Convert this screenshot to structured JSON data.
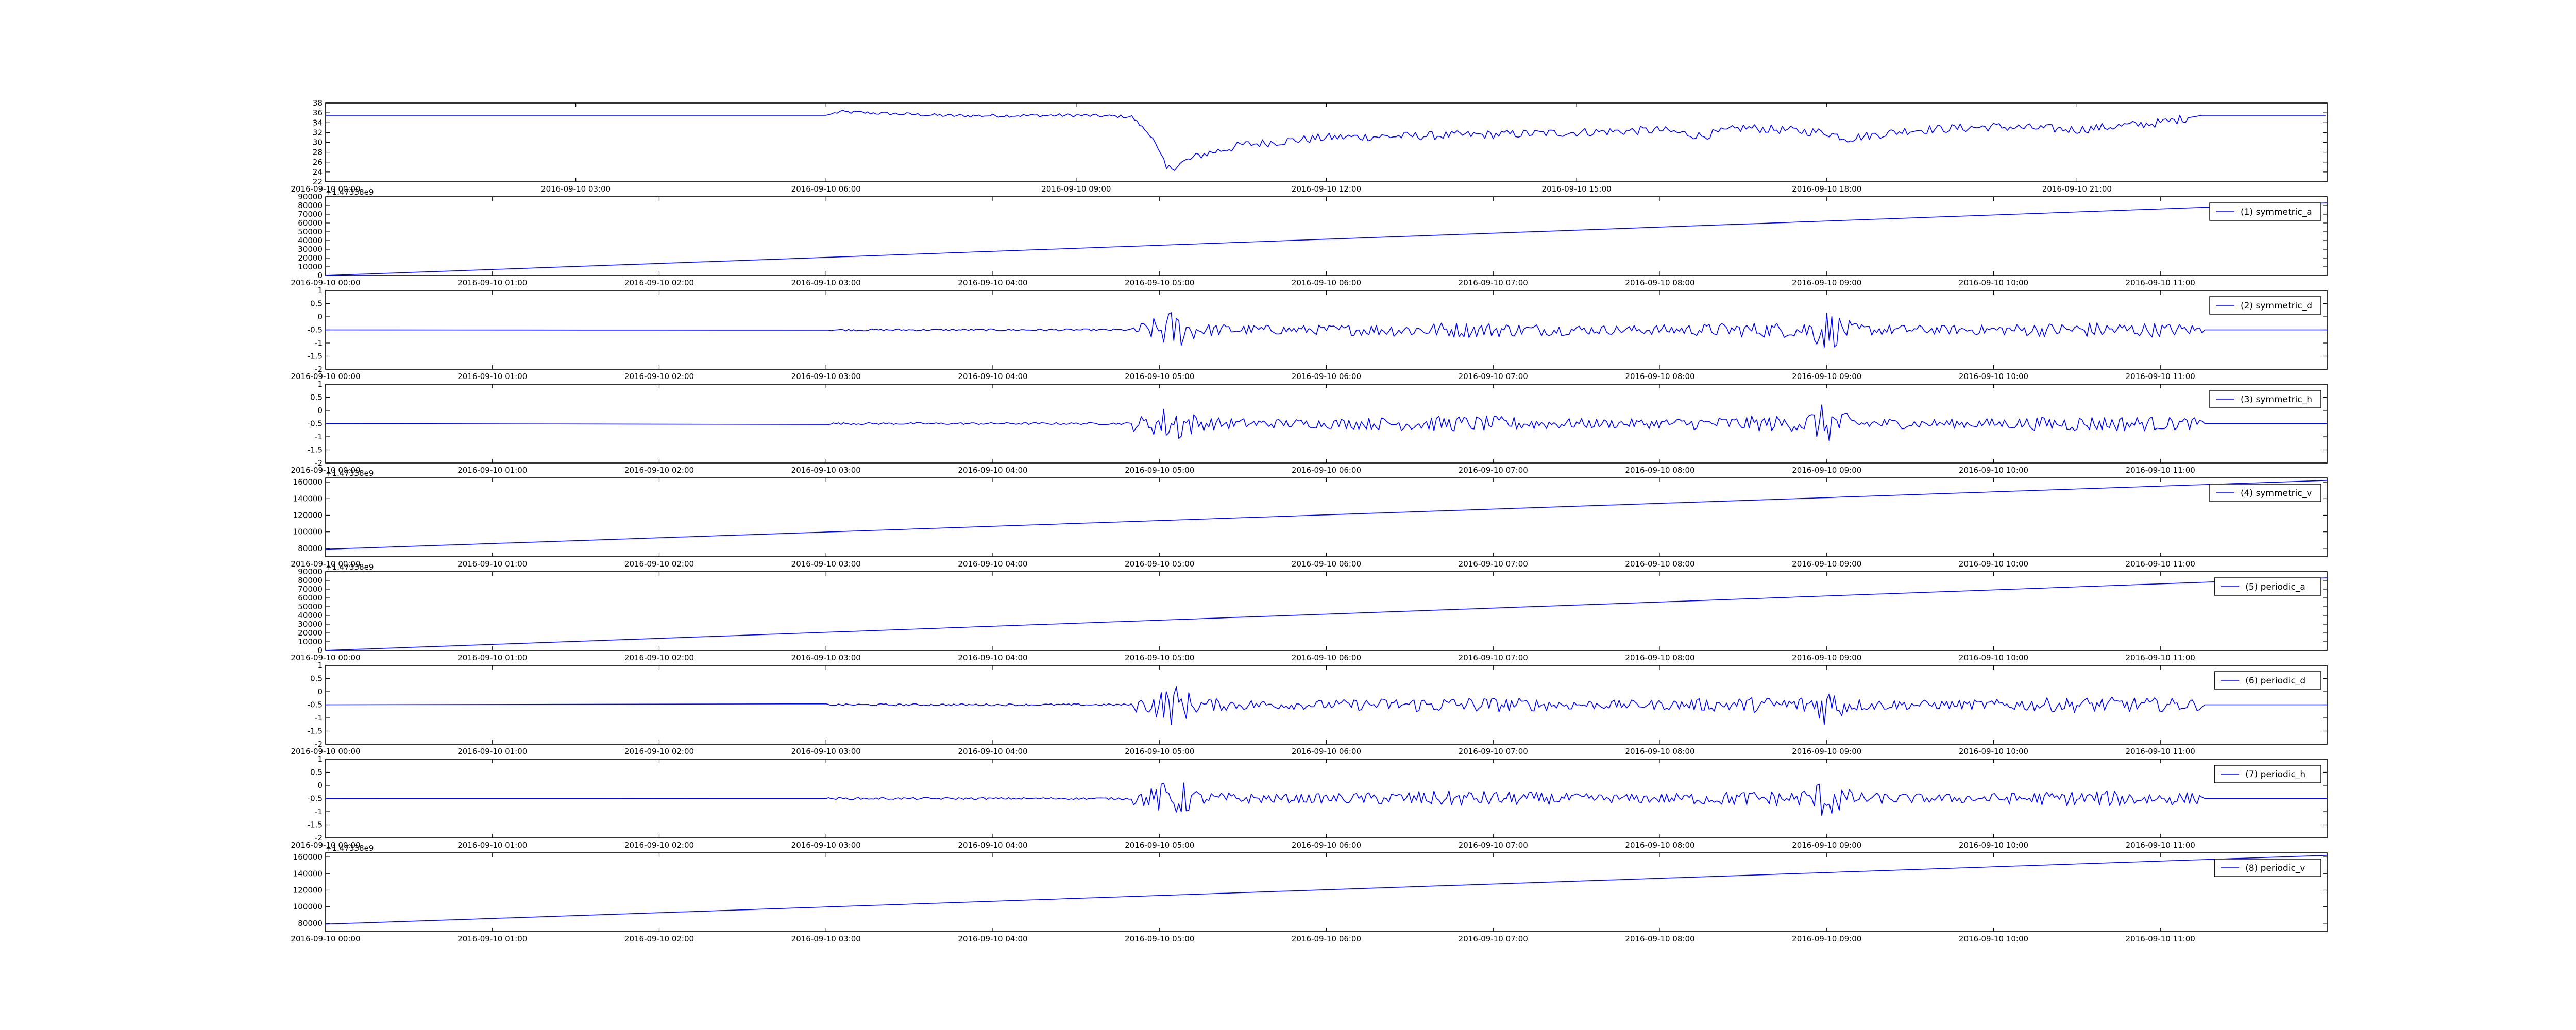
{
  "chart_data": [
    {
      "type": "line",
      "xticks": [
        "2016-09-10 00:00",
        "2016-09-10 03:00",
        "2016-09-10 06:00",
        "2016-09-10 09:00",
        "2016-09-10 12:00",
        "2016-09-10 15:00",
        "2016-09-10 18:00",
        "2016-09-10 21:00"
      ],
      "xlim": [
        "2016-09-10 00:00",
        "2016-09-11 00:00"
      ],
      "ylim": [
        22,
        38
      ],
      "yticks": [
        22,
        24,
        26,
        28,
        30,
        32,
        34,
        36,
        38
      ],
      "series": [
        {
          "x": [
            "2016-09-10 00:00",
            "2016-09-10 06:00",
            "2016-09-10 06:10",
            "2016-09-10 07:30",
            "2016-09-10 09:00",
            "2016-09-10 09:40",
            "2016-09-10 09:55",
            "2016-09-10 10:05",
            "2016-09-10 10:30",
            "2016-09-10 11:00",
            "2016-09-10 12:00",
            "2016-09-10 14:00",
            "2016-09-10 16:00",
            "2016-09-10 16:30",
            "2016-09-10 17:00",
            "2016-09-10 18:00",
            "2016-09-10 18:15",
            "2016-09-10 19:00",
            "2016-09-10 20:00",
            "2016-09-10 21:00",
            "2016-09-10 22:00",
            "2016-09-10 22:30",
            "2016-09-10 23:59"
          ],
          "y": [
            35.5,
            35.5,
            36.2,
            35.4,
            35.5,
            35.2,
            31.0,
            24.5,
            27.5,
            29.5,
            31.0,
            31.6,
            32.5,
            31.3,
            33.0,
            32.0,
            30.8,
            32.5,
            33.2,
            32.6,
            34.0,
            35.5,
            35.5
          ]
        }
      ]
    },
    {
      "type": "line",
      "xticks": [
        "2016-09-10 00:00",
        "2016-09-10 01:00",
        "2016-09-10 02:00",
        "2016-09-10 03:00",
        "2016-09-10 04:00",
        "2016-09-10 05:00",
        "2016-09-10 06:00",
        "2016-09-10 07:00",
        "2016-09-10 08:00",
        "2016-09-10 09:00",
        "2016-09-10 10:00",
        "2016-09-10 11:00"
      ],
      "xlim": [
        "2016-09-10 00:00",
        "2016-09-10 12:00"
      ],
      "offset_label": "+1.47338e9",
      "ylim": [
        0,
        90000
      ],
      "yticks": [
        0,
        10000,
        20000,
        30000,
        40000,
        50000,
        60000,
        70000,
        80000,
        90000
      ],
      "series": [
        {
          "name": "(1) symmetric_a",
          "x": [
            "2016-09-10 00:00",
            "2016-09-10 12:00"
          ],
          "y": [
            0,
            83000
          ]
        }
      ]
    },
    {
      "type": "line",
      "xticks": [
        "2016-09-10 00:00",
        "2016-09-10 01:00",
        "2016-09-10 02:00",
        "2016-09-10 03:00",
        "2016-09-10 04:00",
        "2016-09-10 05:00",
        "2016-09-10 06:00",
        "2016-09-10 07:00",
        "2016-09-10 08:00",
        "2016-09-10 09:00",
        "2016-09-10 10:00",
        "2016-09-10 11:00"
      ],
      "xlim": [
        "2016-09-10 00:00",
        "2016-09-10 12:00"
      ],
      "ylim": [
        -2.0,
        1.0
      ],
      "yticks": [
        -2.0,
        -1.5,
        -1.0,
        -0.5,
        0.0,
        0.5,
        1.0
      ],
      "series": [
        {
          "name": "(2) symmetric_d",
          "baseline": -0.5,
          "noise_start": "2016-09-10 03:00",
          "noise_end": "2016-09-10 11:15",
          "peak_times": [
            "2016-09-10 05:05",
            "2016-09-10 09:00"
          ]
        }
      ]
    },
    {
      "type": "line",
      "xticks": [
        "2016-09-10 00:00",
        "2016-09-10 01:00",
        "2016-09-10 02:00",
        "2016-09-10 03:00",
        "2016-09-10 04:00",
        "2016-09-10 05:00",
        "2016-09-10 06:00",
        "2016-09-10 07:00",
        "2016-09-10 08:00",
        "2016-09-10 09:00",
        "2016-09-10 10:00",
        "2016-09-10 11:00"
      ],
      "xlim": [
        "2016-09-10 00:00",
        "2016-09-10 12:00"
      ],
      "ylim": [
        -2.0,
        1.0
      ],
      "yticks": [
        -2.0,
        -1.5,
        -1.0,
        -0.5,
        0.0,
        0.5,
        1.0
      ],
      "series": [
        {
          "name": "(3) symmetric_h",
          "baseline": -0.5,
          "noise_start": "2016-09-10 03:00",
          "noise_end": "2016-09-10 11:15",
          "peak_times": [
            "2016-09-10 05:05",
            "2016-09-10 09:00"
          ]
        }
      ]
    },
    {
      "type": "line",
      "xticks": [
        "2016-09-10 00:00",
        "2016-09-10 01:00",
        "2016-09-10 02:00",
        "2016-09-10 03:00",
        "2016-09-10 04:00",
        "2016-09-10 05:00",
        "2016-09-10 06:00",
        "2016-09-10 07:00",
        "2016-09-10 08:00",
        "2016-09-10 09:00",
        "2016-09-10 10:00",
        "2016-09-10 11:00"
      ],
      "xlim": [
        "2016-09-10 00:00",
        "2016-09-10 12:00"
      ],
      "offset_label": "+1.47338e9",
      "ylim": [
        70000,
        165000
      ],
      "yticks": [
        80000,
        100000,
        120000,
        140000,
        160000
      ],
      "series": [
        {
          "name": "(4) symmetric_v",
          "x": [
            "2016-09-10 00:00",
            "2016-09-10 12:00"
          ],
          "y": [
            79000,
            162000
          ]
        }
      ]
    },
    {
      "type": "line",
      "xticks": [
        "2016-09-10 00:00",
        "2016-09-10 01:00",
        "2016-09-10 02:00",
        "2016-09-10 03:00",
        "2016-09-10 04:00",
        "2016-09-10 05:00",
        "2016-09-10 06:00",
        "2016-09-10 07:00",
        "2016-09-10 08:00",
        "2016-09-10 09:00",
        "2016-09-10 10:00",
        "2016-09-10 11:00"
      ],
      "xlim": [
        "2016-09-10 00:00",
        "2016-09-10 12:00"
      ],
      "offset_label": "+1.47338e9",
      "ylim": [
        0,
        90000
      ],
      "yticks": [
        0,
        10000,
        20000,
        30000,
        40000,
        50000,
        60000,
        70000,
        80000,
        90000
      ],
      "series": [
        {
          "name": "(5) periodic_a",
          "x": [
            "2016-09-10 00:00",
            "2016-09-10 12:00"
          ],
          "y": [
            0,
            83000
          ]
        }
      ]
    },
    {
      "type": "line",
      "xticks": [
        "2016-09-10 00:00",
        "2016-09-10 01:00",
        "2016-09-10 02:00",
        "2016-09-10 03:00",
        "2016-09-10 04:00",
        "2016-09-10 05:00",
        "2016-09-10 06:00",
        "2016-09-10 07:00",
        "2016-09-10 08:00",
        "2016-09-10 09:00",
        "2016-09-10 10:00",
        "2016-09-10 11:00"
      ],
      "xlim": [
        "2016-09-10 00:00",
        "2016-09-10 12:00"
      ],
      "ylim": [
        -2.0,
        1.0
      ],
      "yticks": [
        -2.0,
        -1.5,
        -1.0,
        -0.5,
        0.0,
        0.5,
        1.0
      ],
      "series": [
        {
          "name": "(6) periodic_d",
          "baseline": -0.5,
          "noise_start": "2016-09-10 03:00",
          "noise_end": "2016-09-10 11:15",
          "peak_times": [
            "2016-09-10 05:05",
            "2016-09-10 09:00"
          ]
        }
      ]
    },
    {
      "type": "line",
      "xticks": [
        "2016-09-10 00:00",
        "2016-09-10 01:00",
        "2016-09-10 02:00",
        "2016-09-10 03:00",
        "2016-09-10 04:00",
        "2016-09-10 05:00",
        "2016-09-10 06:00",
        "2016-09-10 07:00",
        "2016-09-10 08:00",
        "2016-09-10 09:00",
        "2016-09-10 10:00",
        "2016-09-10 11:00"
      ],
      "xlim": [
        "2016-09-10 00:00",
        "2016-09-10 12:00"
      ],
      "ylim": [
        -2.0,
        1.0
      ],
      "yticks": [
        -2.0,
        -1.5,
        -1.0,
        -0.5,
        0.0,
        0.5,
        1.0
      ],
      "series": [
        {
          "name": "(7) periodic_h",
          "baseline": -0.5,
          "noise_start": "2016-09-10 03:00",
          "noise_end": "2016-09-10 11:15",
          "peak_times": [
            "2016-09-10 05:05",
            "2016-09-10 09:00"
          ]
        }
      ]
    },
    {
      "type": "line",
      "xticks": [
        "2016-09-10 00:00",
        "2016-09-10 01:00",
        "2016-09-10 02:00",
        "2016-09-10 03:00",
        "2016-09-10 04:00",
        "2016-09-10 05:00",
        "2016-09-10 06:00",
        "2016-09-10 07:00",
        "2016-09-10 08:00",
        "2016-09-10 09:00",
        "2016-09-10 10:00",
        "2016-09-10 11:00"
      ],
      "xlim": [
        "2016-09-10 00:00",
        "2016-09-10 12:00"
      ],
      "offset_label": "+1.47338e9",
      "ylim": [
        70000,
        165000
      ],
      "yticks": [
        80000,
        100000,
        120000,
        140000,
        160000
      ],
      "series": [
        {
          "name": "(8) periodic_v",
          "x": [
            "2016-09-10 00:00",
            "2016-09-10 12:00"
          ],
          "y": [
            79000,
            162000
          ]
        }
      ]
    }
  ]
}
